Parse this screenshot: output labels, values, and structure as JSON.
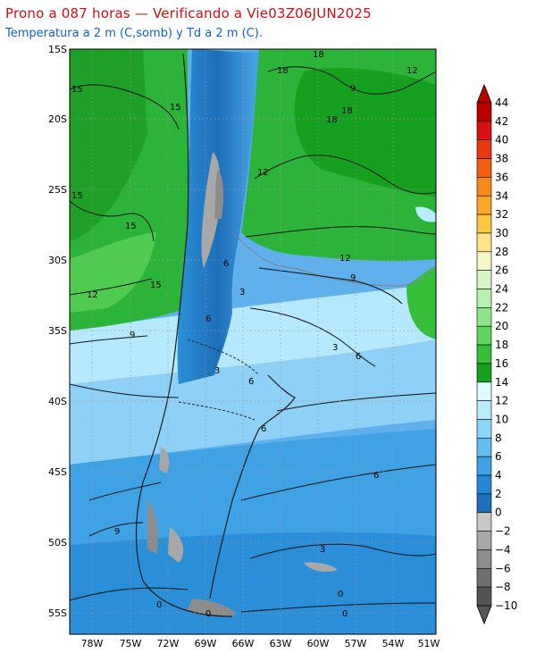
{
  "title": "Prono a 087 horas — Verificando a Vie03Z06JUN2025",
  "subtitle": "Temperatura a 2 m (C,somb) y Td a 2 m (C).",
  "map": {
    "lat_ticks": [
      "15S",
      "20S",
      "25S",
      "30S",
      "35S",
      "40S",
      "45S",
      "50S",
      "55S"
    ],
    "lon_ticks": [
      "78W",
      "75W",
      "72W",
      "69W",
      "66W",
      "63W",
      "60W",
      "57W",
      "54W",
      "51W"
    ],
    "contour_labels": [
      {
        "text": "15"
      },
      {
        "text": "15"
      },
      {
        "text": "15"
      },
      {
        "text": "15"
      },
      {
        "text": "18"
      },
      {
        "text": "18"
      },
      {
        "text": "18"
      },
      {
        "text": "18"
      },
      {
        "text": "12"
      },
      {
        "text": "12"
      },
      {
        "text": "12"
      },
      {
        "text": "12"
      },
      {
        "text": "15"
      },
      {
        "text": "9"
      },
      {
        "text": "9"
      },
      {
        "text": "9"
      },
      {
        "text": "6"
      },
      {
        "text": "6"
      },
      {
        "text": "6"
      },
      {
        "text": "3"
      },
      {
        "text": "3"
      },
      {
        "text": "3"
      },
      {
        "text": "3"
      },
      {
        "text": "6"
      },
      {
        "text": "6"
      },
      {
        "text": "0"
      },
      {
        "text": "0"
      },
      {
        "text": "0"
      },
      {
        "text": "0"
      },
      {
        "text": "9"
      },
      {
        "text": "6"
      }
    ]
  },
  "colorbar": {
    "labels": [
      "44",
      "42",
      "40",
      "38",
      "36",
      "34",
      "32",
      "30",
      "28",
      "26",
      "24",
      "22",
      "20",
      "18",
      "16",
      "14",
      "12",
      "10",
      "8",
      "6",
      "4",
      "2",
      "0",
      "−2",
      "−4",
      "−6",
      "−8",
      "−10"
    ],
    "colors": [
      "#b80000",
      "#d81010",
      "#e83a10",
      "#f06010",
      "#f58a1a",
      "#f8a828",
      "#fbc840",
      "#fde48a",
      "#f5f7c8",
      "#d8f5c8",
      "#b8f0b0",
      "#8fe38f",
      "#5ed65e",
      "#36c03a",
      "#16a020",
      "#e0fbff",
      "#b8ecff",
      "#8cd6f8",
      "#64bef0",
      "#3ea2e4",
      "#2488d4",
      "#1c70bc",
      "#c8c8c8",
      "#a8a8a8",
      "#8c8c8c",
      "#707070",
      "#545454"
    ]
  }
}
